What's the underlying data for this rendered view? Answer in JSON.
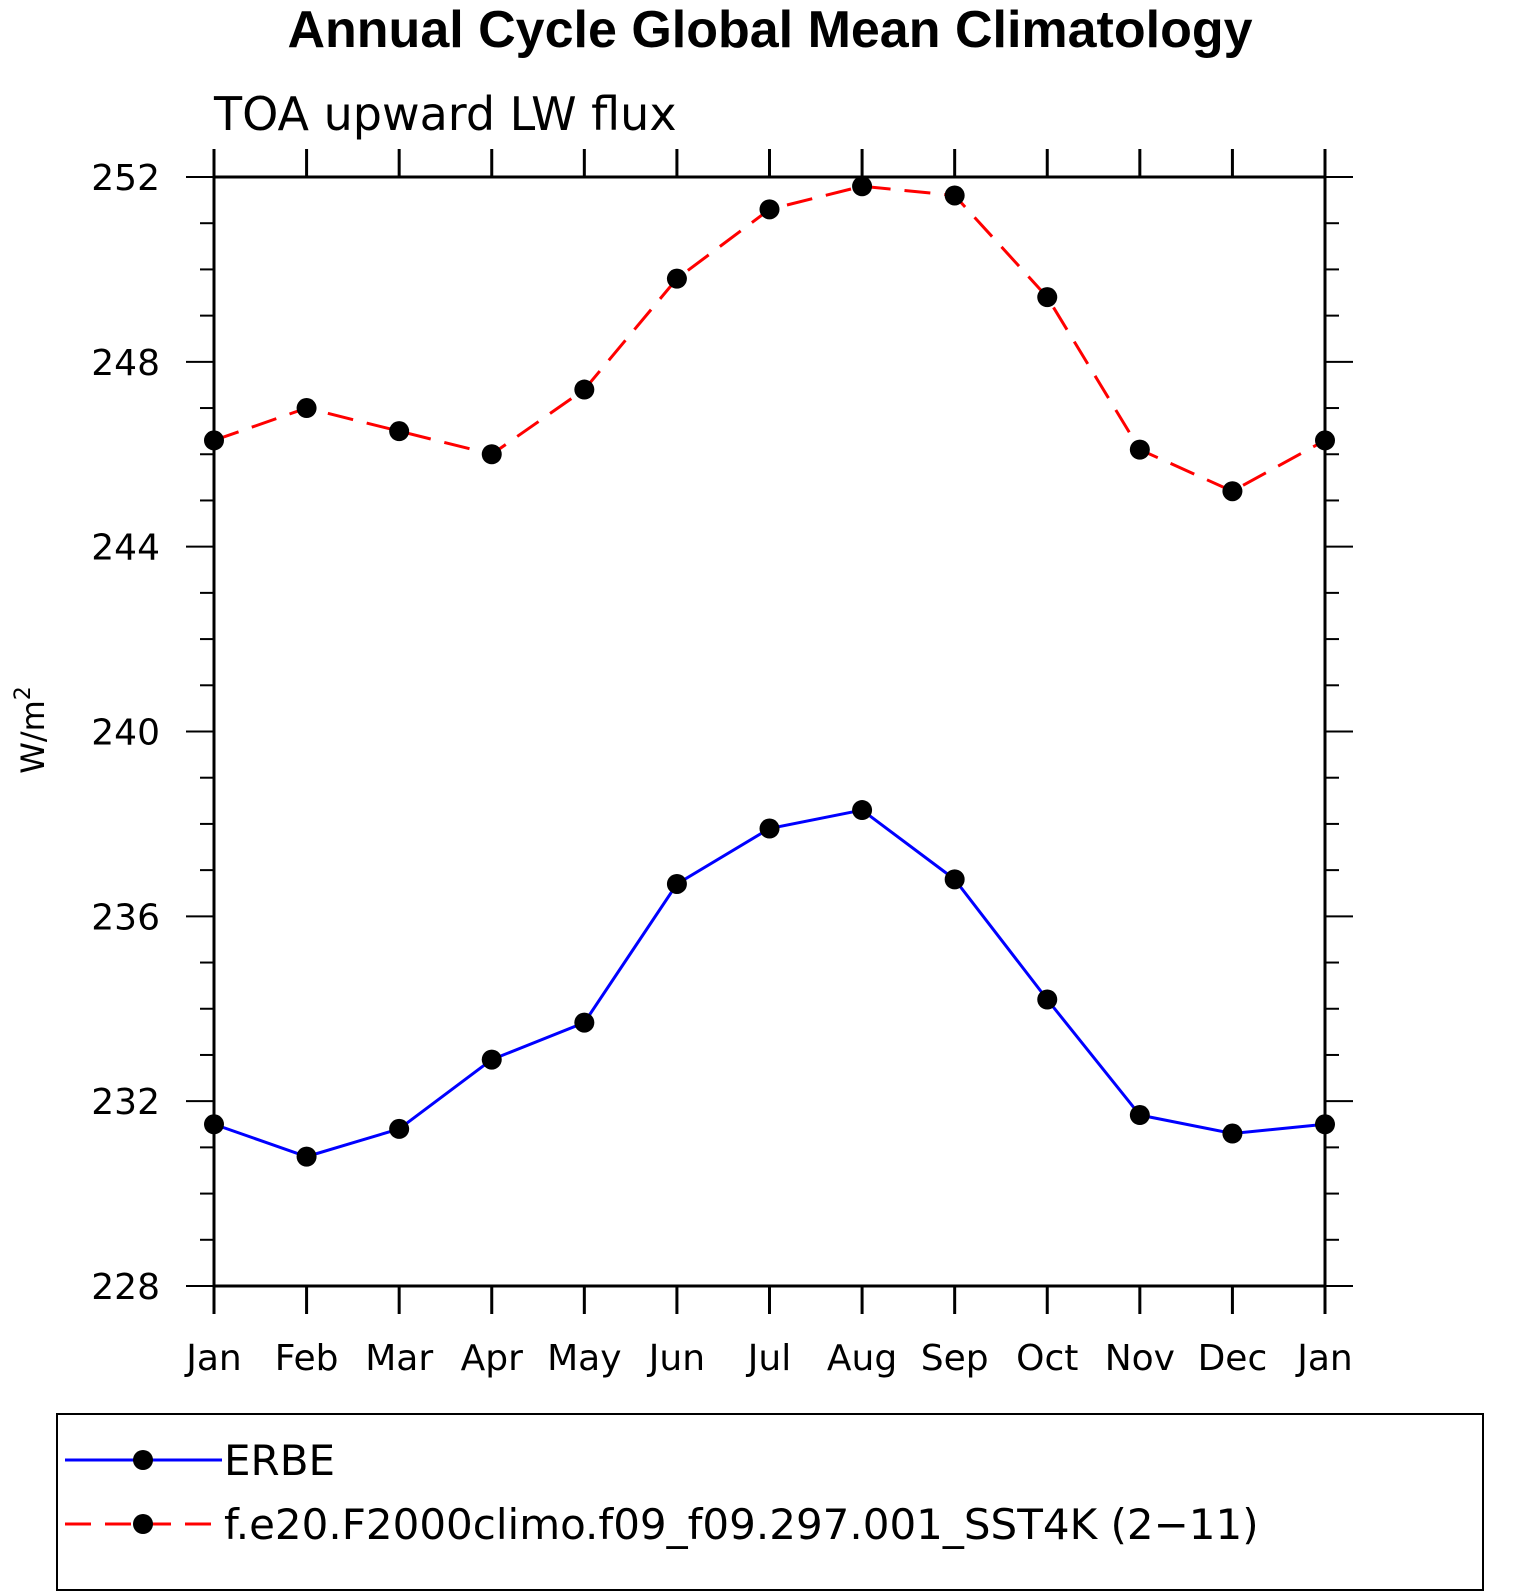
{
  "chart_data": {
    "type": "line",
    "title": "Annual Cycle Global Mean Climatology",
    "subtitle": "TOA upward LW flux",
    "ylabel": "W/m",
    "ylabel_superscript": "2",
    "xlabel": "",
    "categories": [
      "Jan",
      "Feb",
      "Mar",
      "Apr",
      "May",
      "Jun",
      "Jul",
      "Aug",
      "Sep",
      "Oct",
      "Nov",
      "Dec",
      "Jan"
    ],
    "ylim": [
      228,
      252
    ],
    "yticks": [
      "252",
      "248",
      "244",
      "240",
      "236",
      "232",
      "228"
    ],
    "grid": false,
    "legend_position": "bottom",
    "series": [
      {
        "name": "ERBE",
        "color": "#0000ff",
        "dash": "solid",
        "marker": "filled-circle",
        "values": [
          231.5,
          230.8,
          231.4,
          232.9,
          233.7,
          236.7,
          237.9,
          238.3,
          236.8,
          234.2,
          231.7,
          231.3,
          231.5
        ]
      },
      {
        "name": "f.e20.F2000climo.f09_f09.297.001_SST4K (2−11)",
        "color": "#ff0000",
        "dash": "dashed",
        "marker": "filled-circle",
        "values": [
          246.3,
          247.0,
          246.5,
          246.0,
          247.4,
          249.8,
          251.3,
          251.8,
          251.6,
          249.4,
          246.1,
          245.2,
          246.3
        ]
      }
    ]
  }
}
